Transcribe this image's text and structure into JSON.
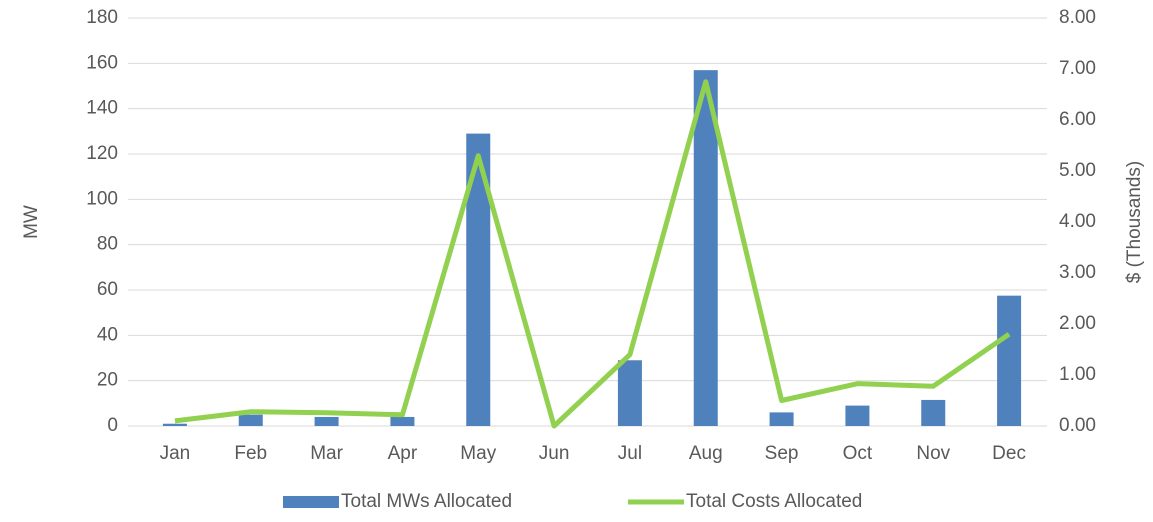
{
  "chart_data": {
    "type": "bar_line",
    "y_label": "MW",
    "y2_label": "$ (Thousands)",
    "categories": [
      "Jan",
      "Feb",
      "Mar",
      "Apr",
      "May",
      "Jun",
      "Jul",
      "Aug",
      "Sep",
      "Oct",
      "Nov",
      "Dec"
    ],
    "series": [
      {
        "name": "Total MWs Allocated",
        "color": "#4f81bd",
        "type": "bar",
        "axis": "y",
        "values": [
          1,
          5,
          4,
          4,
          129,
          0,
          29,
          157,
          6,
          9,
          11.5,
          57.5
        ]
      },
      {
        "name": "Total Costs Allocated",
        "color": "#92d050",
        "type": "line",
        "axis": "y2",
        "values": [
          0.1,
          0.28,
          0.26,
          0.22,
          5.3,
          0,
          1.4,
          6.75,
          0.5,
          0.83,
          0.78,
          1.8
        ]
      }
    ],
    "ylim": [
      0,
      180
    ],
    "yticks": [
      0,
      20,
      40,
      60,
      80,
      100,
      120,
      140,
      160,
      180
    ],
    "y2lim": [
      0,
      8
    ],
    "y2ticks": [
      {
        "value": 0,
        "label": "0.00"
      },
      {
        "value": 1,
        "label": "1.00"
      },
      {
        "value": 2,
        "label": "2.00"
      },
      {
        "value": 3,
        "label": "3.00"
      },
      {
        "value": 4,
        "label": "4.00"
      },
      {
        "value": 5,
        "label": "5.00"
      },
      {
        "value": 6,
        "label": "6.00"
      },
      {
        "value": 7,
        "label": "7.00"
      },
      {
        "value": 8,
        "label": "8.00"
      }
    ],
    "grid": true,
    "legend": "bottom"
  }
}
